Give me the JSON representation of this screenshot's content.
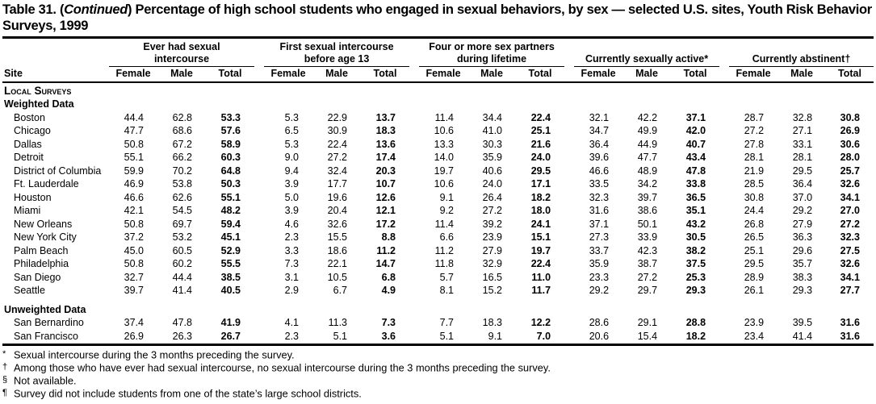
{
  "colors": {
    "text": "#000000",
    "background": "#ffffff",
    "rule": "#000000"
  },
  "title": {
    "prefix": "Table 31. (",
    "continued": "Continued",
    "rest": ") Percentage of high school students who engaged in sexual behaviors, by sex — selected U.S. sites, Youth Risk Behavior Surveys, 1999"
  },
  "table": {
    "site_header": "Site",
    "sub_headers": [
      "Female",
      "Male",
      "Total"
    ],
    "groups": [
      {
        "label": "Ever had sexual intercourse"
      },
      {
        "label": "First sexual intercourse before age 13"
      },
      {
        "label": "Four or more sex partners during lifetime"
      },
      {
        "label": "Currently sexually active*"
      },
      {
        "label": "Currently abstinent†"
      }
    ],
    "sections": [
      {
        "label": "Local Surveys",
        "subsections": [
          {
            "label": "Weighted Data",
            "rows": [
              {
                "site": "Boston",
                "values": [
                  "44.4",
                  "62.8",
                  "53.3",
                  "5.3",
                  "22.9",
                  "13.7",
                  "11.4",
                  "34.4",
                  "22.4",
                  "32.1",
                  "42.2",
                  "37.1",
                  "28.7",
                  "32.8",
                  "30.8"
                ]
              },
              {
                "site": "Chicago",
                "values": [
                  "47.7",
                  "68.6",
                  "57.6",
                  "6.5",
                  "30.9",
                  "18.3",
                  "10.6",
                  "41.0",
                  "25.1",
                  "34.7",
                  "49.9",
                  "42.0",
                  "27.2",
                  "27.1",
                  "26.9"
                ]
              },
              {
                "site": "Dallas",
                "values": [
                  "50.8",
                  "67.2",
                  "58.9",
                  "5.3",
                  "22.4",
                  "13.6",
                  "13.3",
                  "30.3",
                  "21.6",
                  "36.4",
                  "44.9",
                  "40.7",
                  "27.8",
                  "33.1",
                  "30.6"
                ]
              },
              {
                "site": "Detroit",
                "values": [
                  "55.1",
                  "66.2",
                  "60.3",
                  "9.0",
                  "27.2",
                  "17.4",
                  "14.0",
                  "35.9",
                  "24.0",
                  "39.6",
                  "47.7",
                  "43.4",
                  "28.1",
                  "28.1",
                  "28.0"
                ]
              },
              {
                "site": "District of Columbia",
                "values": [
                  "59.9",
                  "70.2",
                  "64.8",
                  "9.4",
                  "32.4",
                  "20.3",
                  "19.7",
                  "40.6",
                  "29.5",
                  "46.6",
                  "48.9",
                  "47.8",
                  "21.9",
                  "29.5",
                  "25.7"
                ]
              },
              {
                "site": "Ft. Lauderdale",
                "values": [
                  "46.9",
                  "53.8",
                  "50.3",
                  "3.9",
                  "17.7",
                  "10.7",
                  "10.6",
                  "24.0",
                  "17.1",
                  "33.5",
                  "34.2",
                  "33.8",
                  "28.5",
                  "36.4",
                  "32.6"
                ]
              },
              {
                "site": "Houston",
                "values": [
                  "46.6",
                  "62.6",
                  "55.1",
                  "5.0",
                  "19.6",
                  "12.6",
                  "9.1",
                  "26.4",
                  "18.2",
                  "32.3",
                  "39.7",
                  "36.5",
                  "30.8",
                  "37.0",
                  "34.1"
                ]
              },
              {
                "site": "Miami",
                "values": [
                  "42.1",
                  "54.5",
                  "48.2",
                  "3.9",
                  "20.4",
                  "12.1",
                  "9.2",
                  "27.2",
                  "18.0",
                  "31.6",
                  "38.6",
                  "35.1",
                  "24.4",
                  "29.2",
                  "27.0"
                ]
              },
              {
                "site": "New Orleans",
                "values": [
                  "50.8",
                  "69.7",
                  "59.4",
                  "4.6",
                  "32.6",
                  "17.2",
                  "11.4",
                  "39.2",
                  "24.1",
                  "37.1",
                  "50.1",
                  "43.2",
                  "26.8",
                  "27.9",
                  "27.2"
                ]
              },
              {
                "site": "New York City",
                "values": [
                  "37.2",
                  "53.2",
                  "45.1",
                  "2.3",
                  "15.5",
                  "8.8",
                  "6.6",
                  "23.9",
                  "15.1",
                  "27.3",
                  "33.9",
                  "30.5",
                  "26.5",
                  "36.3",
                  "32.3"
                ]
              },
              {
                "site": "Palm Beach",
                "values": [
                  "45.0",
                  "60.5",
                  "52.9",
                  "3.3",
                  "18.6",
                  "11.2",
                  "11.2",
                  "27.9",
                  "19.7",
                  "33.7",
                  "42.3",
                  "38.2",
                  "25.1",
                  "29.6",
                  "27.5"
                ]
              },
              {
                "site": "Philadelphia",
                "values": [
                  "50.8",
                  "60.2",
                  "55.5",
                  "7.3",
                  "22.1",
                  "14.7",
                  "11.8",
                  "32.9",
                  "22.4",
                  "35.9",
                  "38.7",
                  "37.5",
                  "29.5",
                  "35.7",
                  "32.6"
                ]
              },
              {
                "site": "San Diego",
                "values": [
                  "32.7",
                  "44.4",
                  "38.5",
                  "3.1",
                  "10.5",
                  "6.8",
                  "5.7",
                  "16.5",
                  "11.0",
                  "23.3",
                  "27.2",
                  "25.3",
                  "28.9",
                  "38.3",
                  "34.1"
                ]
              },
              {
                "site": "Seattle",
                "values": [
                  "39.7",
                  "41.4",
                  "40.5",
                  "2.9",
                  "6.7",
                  "4.9",
                  "8.1",
                  "15.2",
                  "11.7",
                  "29.2",
                  "29.7",
                  "29.3",
                  "26.1",
                  "29.3",
                  "27.7"
                ]
              }
            ]
          },
          {
            "label": "Unweighted Data",
            "rows": [
              {
                "site": "San Bernardino",
                "values": [
                  "37.4",
                  "47.8",
                  "41.9",
                  "4.1",
                  "11.3",
                  "7.3",
                  "7.7",
                  "18.3",
                  "12.2",
                  "28.6",
                  "29.1",
                  "28.8",
                  "23.9",
                  "39.5",
                  "31.6"
                ]
              },
              {
                "site": "San Francisco",
                "values": [
                  "26.9",
                  "26.3",
                  "26.7",
                  "2.3",
                  "5.1",
                  "3.6",
                  "5.1",
                  "9.1",
                  "7.0",
                  "20.6",
                  "15.4",
                  "18.2",
                  "23.4",
                  "41.4",
                  "31.6"
                ]
              }
            ]
          }
        ]
      }
    ]
  },
  "footnotes": [
    {
      "marker": "*",
      "text": "Sexual intercourse during the 3 months preceding the survey."
    },
    {
      "marker": "†",
      "text": "Among those who have ever had sexual intercourse, no sexual intercourse during the 3 months preceding the survey."
    },
    {
      "marker": "§",
      "text": "Not available."
    },
    {
      "marker": "¶",
      "text": "Survey did not include students from one of the state’s large school districts."
    }
  ]
}
